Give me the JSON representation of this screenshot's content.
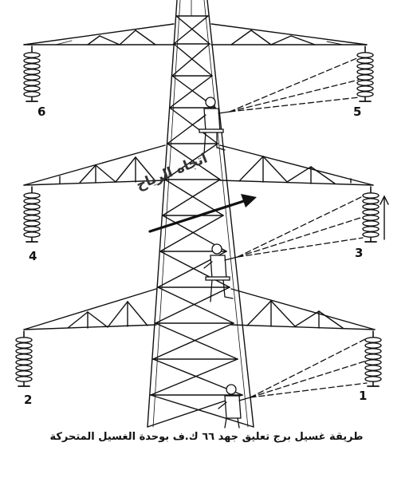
{
  "figure": {
    "caption": "طريقة غسيل برج تعليق جهد ٦٦ ك.ف بوحدة الغسيل المتحركة",
    "wind_label": "اتجاه الرياح",
    "insulator_labels": [
      "1",
      "2",
      "3",
      "4",
      "5",
      "6"
    ]
  }
}
